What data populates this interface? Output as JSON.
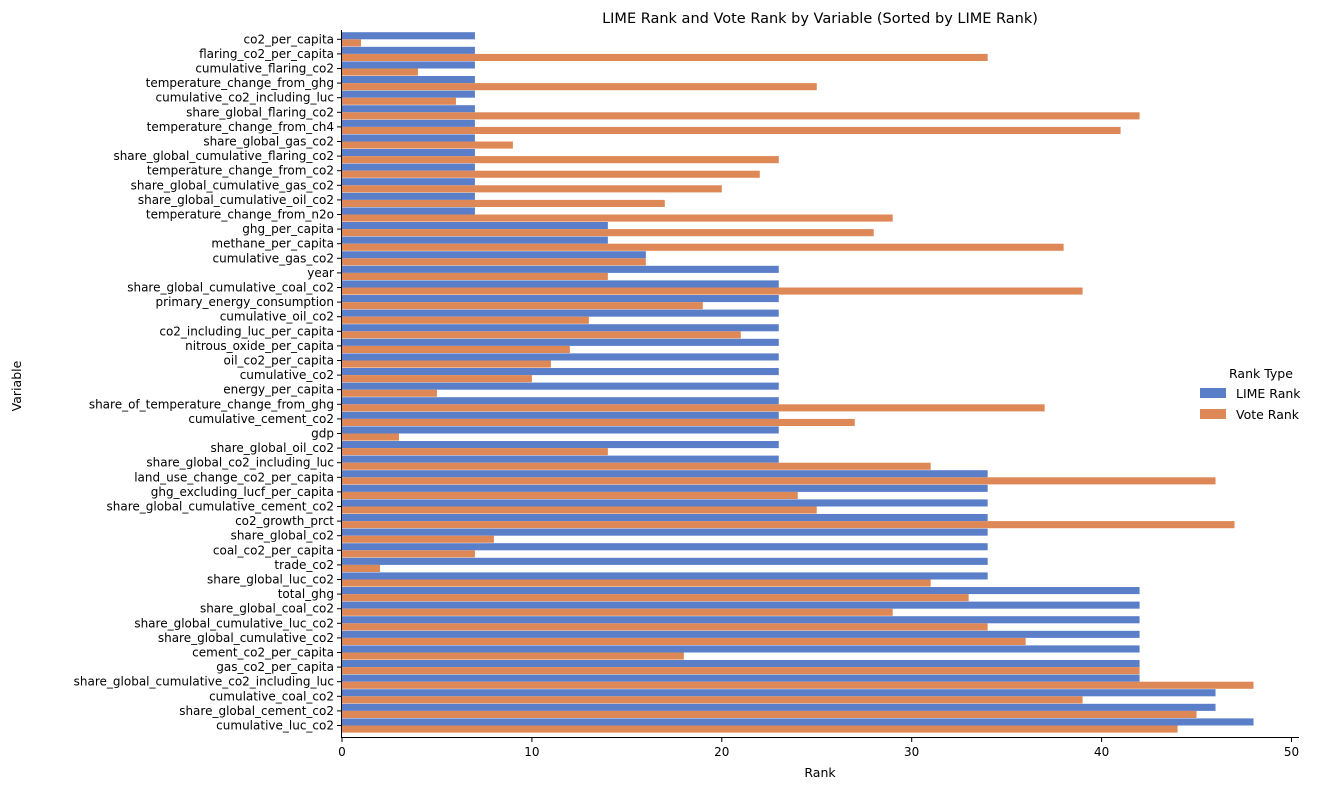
{
  "chart_data": {
    "type": "bar",
    "orientation": "horizontal",
    "title": "LIME Rank and Vote Rank by Variable (Sorted by LIME Rank)",
    "xlabel": "Rank",
    "ylabel": "Variable",
    "xlim": [
      0,
      50
    ],
    "xticks": [
      "0",
      "10",
      "20",
      "30",
      "40",
      "50"
    ],
    "grid": false,
    "legend": {
      "title": "Rank Type",
      "placement": "right"
    },
    "categories": [
      "co2_per_capita",
      "flaring_co2_per_capita",
      "cumulative_flaring_co2",
      "temperature_change_from_ghg",
      "cumulative_co2_including_luc",
      "share_global_flaring_co2",
      "temperature_change_from_ch4",
      "share_global_gas_co2",
      "share_global_cumulative_flaring_co2",
      "temperature_change_from_co2",
      "share_global_cumulative_gas_co2",
      "share_global_cumulative_oil_co2",
      "temperature_change_from_n2o",
      "ghg_per_capita",
      "methane_per_capita",
      "cumulative_gas_co2",
      "year",
      "share_global_cumulative_coal_co2",
      "primary_energy_consumption",
      "cumulative_oil_co2",
      "co2_including_luc_per_capita",
      "nitrous_oxide_per_capita",
      "oil_co2_per_capita",
      "cumulative_co2",
      "energy_per_capita",
      "share_of_temperature_change_from_ghg",
      "cumulative_cement_co2",
      "gdp",
      "share_global_oil_co2",
      "share_global_co2_including_luc",
      "land_use_change_co2_per_capita",
      "ghg_excluding_lucf_per_capita",
      "share_global_cumulative_cement_co2",
      "co2_growth_prct",
      "share_global_co2",
      "coal_co2_per_capita",
      "trade_co2",
      "share_global_luc_co2",
      "total_ghg",
      "share_global_coal_co2",
      "share_global_cumulative_luc_co2",
      "share_global_cumulative_co2",
      "cement_co2_per_capita",
      "gas_co2_per_capita",
      "share_global_cumulative_co2_including_luc",
      "cumulative_coal_co2",
      "share_global_cement_co2",
      "cumulative_luc_co2"
    ],
    "series": [
      {
        "name": "LIME Rank",
        "color": "#5a7fc8",
        "values": [
          7,
          7,
          7,
          7,
          7,
          7,
          7,
          7,
          7,
          7,
          7,
          7,
          7,
          14,
          14,
          16,
          23,
          23,
          23,
          23,
          23,
          23,
          23,
          23,
          23,
          23,
          23,
          23,
          23,
          23,
          34,
          34,
          34,
          34,
          34,
          34,
          34,
          34,
          42,
          42,
          42,
          42,
          42,
          42,
          42,
          46,
          46,
          48
        ]
      },
      {
        "name": "Vote Rank",
        "color": "#df8857",
        "values": [
          1,
          34,
          4,
          25,
          6,
          42,
          41,
          9,
          23,
          22,
          20,
          17,
          29,
          28,
          38,
          16,
          14,
          39,
          19,
          13,
          21,
          12,
          11,
          10,
          5,
          37,
          27,
          3,
          14,
          31,
          46,
          24,
          25,
          47,
          8,
          7,
          2,
          31,
          33,
          29,
          34,
          36,
          18,
          42,
          48,
          39,
          45,
          44
        ]
      }
    ]
  }
}
